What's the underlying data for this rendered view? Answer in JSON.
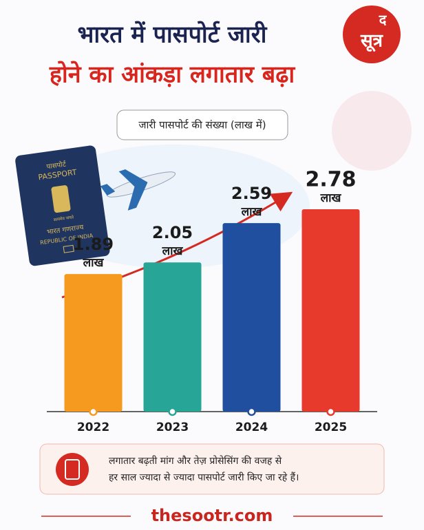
{
  "header": {
    "title_line1": "भारत में पासपोर्ट जारी",
    "title_line2": "होने का आंकड़ा लगातार बढ़ा",
    "logo": {
      "top": "द",
      "bottom": "सूत्र"
    }
  },
  "chart_data": {
    "type": "bar",
    "subtitle": "जारी पासपोर्ट की संख्या (लाख में)",
    "categories": [
      "2022",
      "2023",
      "2024",
      "2025"
    ],
    "values": [
      1.89,
      2.05,
      2.59,
      2.78
    ],
    "colors": [
      "#f59a1e",
      "#27a596",
      "#1f4f9e",
      "#e8392d"
    ],
    "unit_label": "लाख"
  },
  "passport": {
    "top_hindi": "पासपोर्ट",
    "top_english": "PASSPORT",
    "motto": "सत्यमेव जयते",
    "country_hindi": "भारत गणराज्य",
    "country_english": "REPUBLIC OF INDIA"
  },
  "note": {
    "lines": [
      "लगातार बढ़ती मांग और तेज़ प्रोसेसिंग की वजह से",
      "हर साल ज्यादा से ज्यादा पासपोर्ट जारी किए जा रहे हैं।"
    ]
  },
  "footer": {
    "site": "thesootr.com"
  }
}
